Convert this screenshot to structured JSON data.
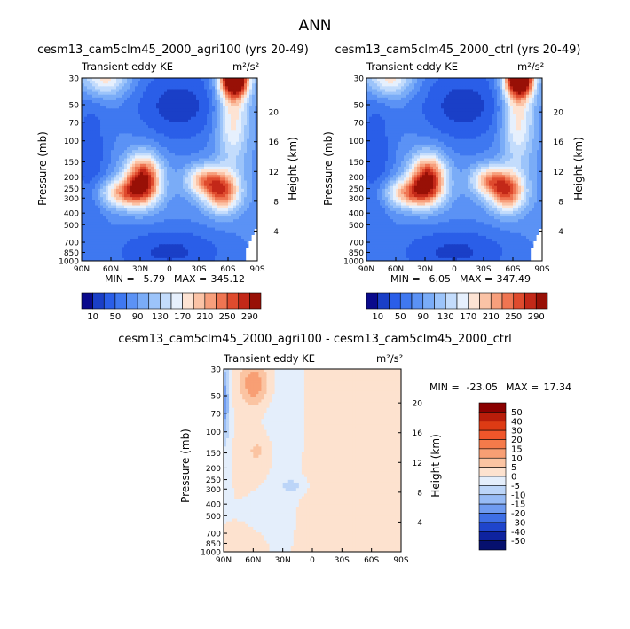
{
  "figure": {
    "title": "ANN"
  },
  "chart_data": [
    {
      "type": "heatmap",
      "title": "cesm13_cam5clm45_2000_agri100 (yrs 20-49)",
      "variable": "Transient eddy KE",
      "units": "m²/s²",
      "ylabel": "Pressure (mb)",
      "y2label": "Height (km)",
      "x_ticks": [
        "90N",
        "60N",
        "30N",
        "0",
        "30S",
        "60S",
        "90S"
      ],
      "y_ticks": [
        30,
        50,
        70,
        100,
        150,
        200,
        250,
        300,
        400,
        500,
        700,
        850,
        1000
      ],
      "y2_ticks": [
        20,
        16,
        12,
        8,
        4
      ],
      "y_scale": "log",
      "stats": {
        "min_label": "MIN =",
        "min": "5.79",
        "max_label": "MAX =",
        "max": "345.12"
      },
      "colorbar": {
        "orientation": "horizontal",
        "labels": [
          "10",
          "50",
          "90",
          "130",
          "170",
          "210",
          "250",
          "290"
        ],
        "levels": [
          10,
          30,
          50,
          70,
          90,
          110,
          130,
          150,
          170,
          190,
          210,
          230,
          250,
          270,
          290
        ],
        "colors": [
          "#0a0a8c",
          "#1a3fc7",
          "#2a5ee8",
          "#3f78f0",
          "#5b92f5",
          "#7aacf7",
          "#9cc4fa",
          "#c3dcfc",
          "#e6f0fd",
          "#fde3d3",
          "#fbc3a6",
          "#f79f7c",
          "#ef7552",
          "#df4b2e",
          "#c32818",
          "#981006"
        ]
      },
      "colormode": "absolute"
    },
    {
      "type": "heatmap",
      "title": "cesm13_cam5clm45_2000_ctrl (yrs 20-49)",
      "variable": "Transient eddy KE",
      "units": "m²/s²",
      "ylabel": "Pressure (mb)",
      "y2label": "Height (km)",
      "x_ticks": [
        "90N",
        "60N",
        "30N",
        "0",
        "30S",
        "60S",
        "90S"
      ],
      "y_ticks": [
        30,
        50,
        70,
        100,
        150,
        200,
        250,
        300,
        400,
        500,
        700,
        850,
        1000
      ],
      "y2_ticks": [
        20,
        16,
        12,
        8,
        4
      ],
      "y_scale": "log",
      "stats": {
        "min_label": "MIN =",
        "min": "6.05",
        "max_label": "MAX =",
        "max": "347.49"
      },
      "colorbar": {
        "orientation": "horizontal",
        "labels": [
          "10",
          "50",
          "90",
          "130",
          "170",
          "210",
          "250",
          "290"
        ],
        "levels": [
          10,
          30,
          50,
          70,
          90,
          110,
          130,
          150,
          170,
          190,
          210,
          230,
          250,
          270,
          290
        ],
        "colors": [
          "#0a0a8c",
          "#1a3fc7",
          "#2a5ee8",
          "#3f78f0",
          "#5b92f5",
          "#7aacf7",
          "#9cc4fa",
          "#c3dcfc",
          "#e6f0fd",
          "#fde3d3",
          "#fbc3a6",
          "#f79f7c",
          "#ef7552",
          "#df4b2e",
          "#c32818",
          "#981006"
        ]
      },
      "colormode": "absolute"
    },
    {
      "type": "heatmap",
      "title": "cesm13_cam5clm45_2000_agri100 - cesm13_cam5clm45_2000_ctrl",
      "variable": "Transient eddy KE",
      "units": "m²/s²",
      "ylabel": "Pressure (mb)",
      "y2label": "Height (km)",
      "x_ticks": [
        "90N",
        "60N",
        "30N",
        "0",
        "30S",
        "60S",
        "90S"
      ],
      "y_ticks": [
        30,
        50,
        70,
        100,
        150,
        200,
        250,
        300,
        400,
        500,
        700,
        850,
        1000
      ],
      "y2_ticks": [
        20,
        16,
        12,
        8,
        4
      ],
      "y_scale": "log",
      "stats": {
        "min_label": "MIN =",
        "min": "-23.05",
        "max_label": "MAX =",
        "max": "17.34"
      },
      "colorbar": {
        "orientation": "vertical",
        "labels": [
          "50",
          "40",
          "30",
          "20",
          "15",
          "10",
          "5",
          "0",
          "-5",
          "-10",
          "-15",
          "-20",
          "-30",
          "-40",
          "-50"
        ],
        "colors": [
          "#8a0000",
          "#b81d0a",
          "#de3b14",
          "#f0562a",
          "#f57a4a",
          "#f89f74",
          "#fbc4a2",
          "#fde2cf",
          "#e4eefb",
          "#bcd5f8",
          "#97bbf5",
          "#6f9bf0",
          "#3e6fe6",
          "#1f45cc",
          "#0e239f",
          "#06106e"
        ]
      },
      "colormode": "difference"
    }
  ]
}
